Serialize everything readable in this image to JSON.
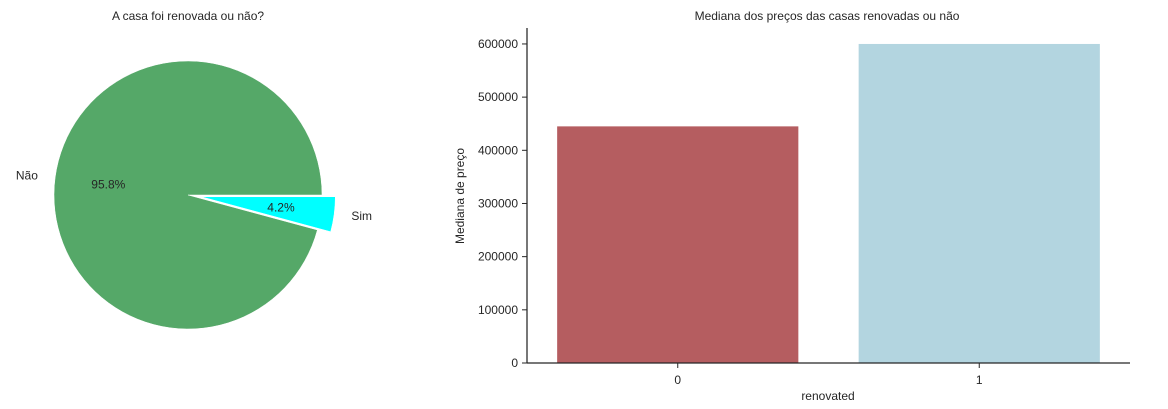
{
  "colors": {
    "nao": "#55a868",
    "sim": "#00ffff",
    "bar_0": "#b55d60",
    "bar_1": "#b3d5e0",
    "axis": "#262626"
  },
  "chart_data": [
    {
      "type": "pie",
      "title": "A casa foi renovada ou não?",
      "labels": [
        "Não",
        "Sim"
      ],
      "values": [
        95.8,
        4.2
      ],
      "autopct_labels": [
        "95.8%",
        "4.2%"
      ],
      "explode": [
        0,
        0.1
      ],
      "colors": [
        "#55a868",
        "#00ffff"
      ]
    },
    {
      "type": "bar",
      "title": "Mediana dos preços das casas renovadas ou não",
      "xlabel": "renovated",
      "ylabel": "Mediana de preço",
      "categories": [
        "0",
        "1"
      ],
      "values": [
        445000,
        600000
      ],
      "colors": [
        "#b55d60",
        "#b3d5e0"
      ],
      "ylim": [
        0,
        630000
      ],
      "yticks": [
        0,
        100000,
        200000,
        300000,
        400000,
        500000,
        600000
      ],
      "ytick_labels": [
        "0",
        "100000",
        "200000",
        "300000",
        "400000",
        "500000",
        "600000"
      ],
      "grid": false
    }
  ]
}
